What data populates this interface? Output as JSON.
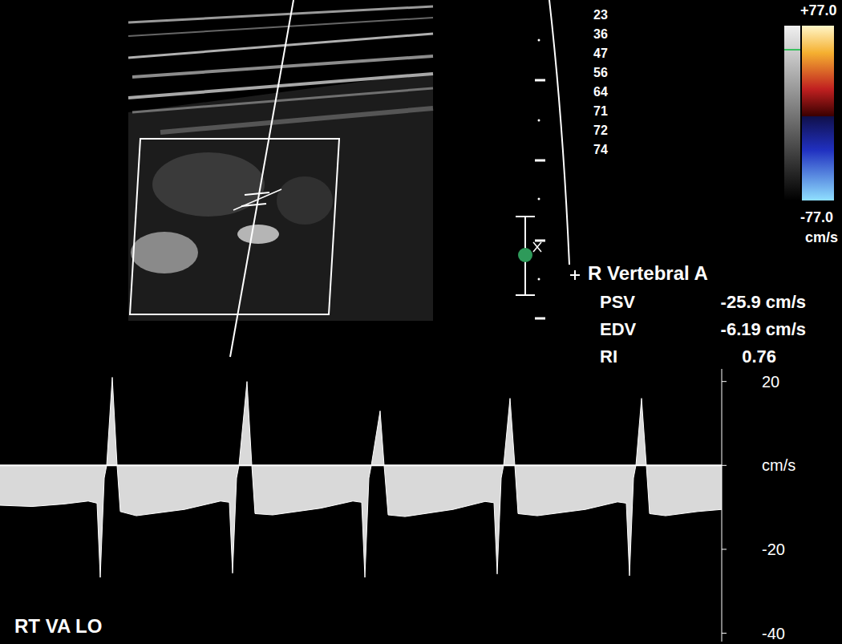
{
  "chart_data": {
    "type": "area",
    "title": "R Vertebral A",
    "annotations": [
      "RT VA LO"
    ],
    "measurements": [
      {
        "label": "PSV",
        "value": -25.9,
        "unit": "cm/s"
      },
      {
        "label": "EDV",
        "value": -6.19,
        "unit": "cm/s"
      },
      {
        "label": "RI",
        "value": 0.76
      }
    ],
    "color_scale": {
      "max": {
        "value": 77.0,
        "label": "+77.0"
      },
      "min": {
        "value": -77.0,
        "label": "-77.0"
      },
      "unit": "cm/s"
    },
    "depth_scale": [
      23,
      36,
      47,
      56,
      64,
      71,
      72,
      74
    ],
    "x": [
      0,
      40,
      80,
      110,
      121,
      125,
      130,
      133,
      140,
      146,
      150,
      170,
      230,
      275,
      286,
      290,
      295,
      298,
      308,
      314,
      318,
      340,
      400,
      440,
      451,
      455,
      460,
      463,
      474,
      479,
      484,
      505,
      565,
      605,
      616,
      620,
      625,
      628,
      636,
      642,
      646,
      670,
      730,
      770,
      781,
      785,
      790,
      793,
      800,
      806,
      810,
      830,
      870,
      900
    ],
    "values": [
      -9.5,
      -9.8,
      -9.2,
      -8.5,
      -9,
      -26.7,
      -3,
      0,
      21,
      0,
      -11,
      -12,
      -10.5,
      -8.5,
      -8.8,
      -25.7,
      -3,
      0,
      20,
      0,
      -11.5,
      -11.8,
      -10.2,
      -8.5,
      -8.8,
      -26.7,
      -3,
      0,
      13,
      0,
      -11.8,
      -12.2,
      -10.5,
      -8.6,
      -8.9,
      -25.9,
      -3,
      0,
      16,
      0,
      -11.5,
      -12,
      -10.5,
      -8.7,
      -9,
      -26.3,
      -3,
      0,
      16,
      0,
      -11.5,
      -12,
      -11,
      -10.5
    ],
    "color": "#ffffff",
    "xlim": [
      0,
      900
    ],
    "ylim": [
      -42,
      23
    ],
    "yticks": [
      -40,
      -20,
      {
        "value": 0,
        "label": "cm/s"
      },
      20
    ],
    "tick_labels": "y",
    "grid": false
  }
}
